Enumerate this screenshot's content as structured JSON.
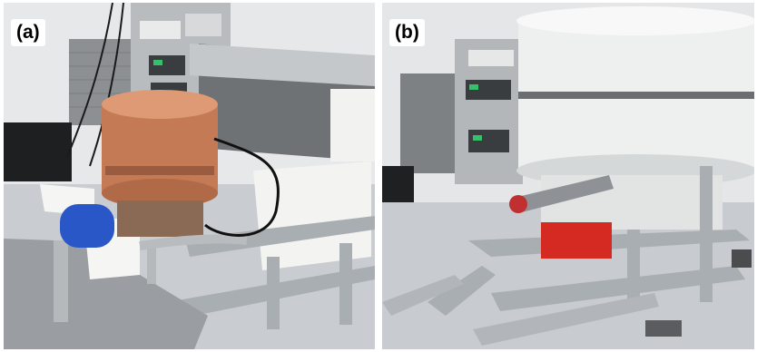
{
  "panels": [
    {
      "label": "(a)"
    },
    {
      "label": "(b)"
    }
  ],
  "colors": {
    "copper": "#c47a55",
    "foam": "#f3f3f1",
    "aluminum": "#a9aeb3",
    "steel": "#8e9296",
    "blue_cryostat": "#2a57c8",
    "red_unit": "#d52a22",
    "shield_white": "#eef0ef",
    "shield_band": "#6b6e70"
  }
}
